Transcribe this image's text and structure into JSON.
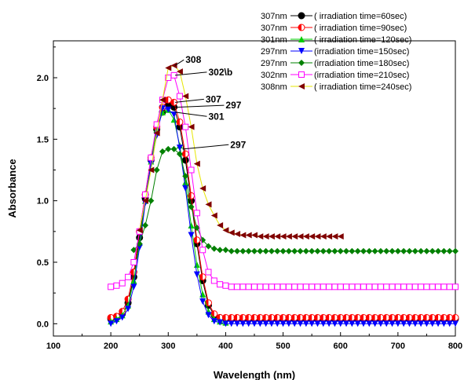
{
  "chart_data": {
    "type": "line",
    "xlabel": "Wavelength (nm)",
    "ylabel": "Absorbance",
    "xlim": [
      100,
      800
    ],
    "ylim": [
      -0.1,
      2.3
    ],
    "x_ticks": [
      100,
      200,
      300,
      400,
      500,
      600,
      700,
      800
    ],
    "x_tick_labels": [
      "100",
      "200",
      "300",
      "400",
      "500",
      "600",
      "700",
      "800"
    ],
    "y_ticks": [
      0.0,
      0.5,
      1.0,
      1.5,
      2.0
    ],
    "y_tick_labels": [
      "0.0",
      "0.5",
      "1.0",
      "1.5",
      "2.0"
    ],
    "legend_position": "top-right",
    "series": [
      {
        "name": "307nm—●—( irradiation time=60sec)",
        "color": "#000000",
        "marker": "circle",
        "x": [
          200,
          210,
          220,
          230,
          240,
          250,
          260,
          270,
          280,
          290,
          300,
          310,
          320,
          330,
          340,
          350,
          360,
          370,
          380,
          390,
          400,
          410,
          420,
          430,
          440,
          450,
          460,
          470,
          480,
          490,
          500,
          510,
          520,
          530,
          540,
          550,
          560,
          570,
          580,
          590,
          600,
          610,
          620,
          630,
          640,
          650,
          660,
          670,
          680,
          690,
          700,
          710,
          720,
          730,
          740,
          750,
          760,
          770,
          780,
          790,
          800
        ],
        "values": [
          0.04,
          0.05,
          0.08,
          0.17,
          0.38,
          0.7,
          1.02,
          1.33,
          1.58,
          1.72,
          1.78,
          1.76,
          1.6,
          1.33,
          1.0,
          0.65,
          0.35,
          0.15,
          0.07,
          0.05,
          0.04,
          0.04,
          0.04,
          0.04,
          0.04,
          0.04,
          0.04,
          0.04,
          0.04,
          0.04,
          0.04,
          0.04,
          0.04,
          0.04,
          0.04,
          0.04,
          0.04,
          0.04,
          0.04,
          0.04,
          0.04,
          0.04,
          0.04,
          0.04,
          0.04,
          0.04,
          0.04,
          0.04,
          0.04,
          0.04,
          0.04,
          0.04,
          0.04,
          0.04,
          0.04,
          0.04,
          0.04,
          0.04,
          0.04,
          0.04,
          0.04
        ]
      },
      {
        "name": "307nm—◐—( irradiation time=90sec)",
        "color": "#ff0000",
        "marker": "half-circle",
        "x": [
          200,
          210,
          220,
          230,
          240,
          250,
          260,
          270,
          280,
          290,
          300,
          310,
          320,
          330,
          340,
          350,
          360,
          370,
          380,
          390,
          400,
          410,
          420,
          430,
          440,
          450,
          460,
          470,
          480,
          490,
          500,
          510,
          520,
          530,
          540,
          550,
          560,
          570,
          580,
          590,
          600,
          610,
          620,
          630,
          640,
          650,
          660,
          670,
          680,
          690,
          700,
          710,
          720,
          730,
          740,
          750,
          760,
          770,
          780,
          790,
          800
        ],
        "values": [
          0.05,
          0.06,
          0.1,
          0.2,
          0.42,
          0.75,
          1.05,
          1.35,
          1.6,
          1.76,
          1.82,
          1.8,
          1.64,
          1.38,
          1.04,
          0.68,
          0.38,
          0.17,
          0.08,
          0.05,
          0.05,
          0.05,
          0.05,
          0.05,
          0.05,
          0.05,
          0.05,
          0.05,
          0.05,
          0.05,
          0.05,
          0.05,
          0.05,
          0.05,
          0.05,
          0.05,
          0.05,
          0.05,
          0.05,
          0.05,
          0.05,
          0.05,
          0.05,
          0.05,
          0.05,
          0.05,
          0.05,
          0.05,
          0.05,
          0.05,
          0.05,
          0.05,
          0.05,
          0.05,
          0.05,
          0.05,
          0.05,
          0.05,
          0.05,
          0.05,
          0.05
        ]
      },
      {
        "name": "301nm—▲—( irradiation time=120sec)",
        "color": "#00cc00",
        "marker": "triangle-up",
        "x": [
          200,
          210,
          220,
          230,
          240,
          250,
          260,
          270,
          280,
          290,
          300,
          310,
          320,
          330,
          340,
          350,
          360,
          370,
          380,
          390,
          400
        ],
        "values": [
          0.02,
          0.04,
          0.07,
          0.15,
          0.35,
          0.66,
          1.0,
          1.32,
          1.58,
          1.72,
          1.74,
          1.66,
          1.45,
          1.15,
          0.8,
          0.48,
          0.24,
          0.1,
          0.04,
          0.02,
          0.01
        ]
      },
      {
        "name": "297nm—▼—(irradiation time=150sec)",
        "color": "#0000ff",
        "marker": "triangle-down",
        "x": [
          200,
          210,
          220,
          230,
          240,
          250,
          260,
          270,
          280,
          290,
          300,
          310,
          320,
          330,
          340,
          350,
          360,
          370,
          380,
          390,
          400,
          410,
          420,
          430,
          440,
          450,
          460,
          470,
          480,
          490,
          500,
          510,
          520,
          530,
          540,
          550,
          560,
          570,
          580,
          590,
          600,
          610,
          620,
          630,
          640,
          650,
          660,
          670,
          680,
          690,
          700,
          710,
          720,
          730,
          740,
          750,
          760,
          770,
          780,
          790,
          800
        ],
        "values": [
          0.0,
          0.02,
          0.05,
          0.12,
          0.3,
          0.62,
          0.98,
          1.3,
          1.53,
          1.75,
          1.74,
          1.7,
          1.43,
          1.1,
          0.72,
          0.4,
          0.18,
          0.07,
          0.02,
          0.01,
          0.0,
          0.0,
          0.0,
          0.0,
          0.0,
          0.0,
          0.0,
          0.0,
          0.0,
          0.0,
          0.0,
          0.0,
          0.0,
          0.0,
          0.0,
          0.0,
          0.0,
          0.0,
          0.0,
          0.0,
          0.0,
          0.0,
          0.0,
          0.0,
          0.0,
          0.0,
          0.0,
          0.0,
          0.0,
          0.0,
          0.0,
          0.0,
          0.0,
          0.0,
          0.0,
          0.0,
          0.0,
          0.0,
          0.0,
          0.0,
          0.0
        ]
      },
      {
        "name": "297nm—◆—(irradiation time=180sec)",
        "color": "#008000",
        "marker": "diamond",
        "x": [
          240,
          250,
          260,
          270,
          280,
          290,
          300,
          310,
          320,
          330,
          340,
          350,
          360,
          370,
          380,
          390,
          400,
          410,
          420,
          430,
          440,
          450,
          460,
          470,
          480,
          490,
          500,
          510,
          520,
          530,
          540,
          550,
          560,
          570,
          580,
          590,
          600,
          610,
          620,
          630,
          640,
          650,
          660,
          670,
          680,
          690,
          700,
          710,
          720,
          730,
          740,
          750,
          760,
          770,
          780,
          790,
          800
        ],
        "values": [
          0.6,
          0.65,
          0.8,
          1.0,
          1.25,
          1.4,
          1.42,
          1.42,
          1.38,
          1.2,
          0.95,
          0.78,
          0.68,
          0.63,
          0.61,
          0.6,
          0.6,
          0.59,
          0.59,
          0.59,
          0.59,
          0.59,
          0.59,
          0.59,
          0.59,
          0.59,
          0.59,
          0.59,
          0.59,
          0.59,
          0.59,
          0.59,
          0.59,
          0.59,
          0.59,
          0.59,
          0.59,
          0.59,
          0.59,
          0.59,
          0.59,
          0.59,
          0.59,
          0.59,
          0.59,
          0.59,
          0.59,
          0.59,
          0.59,
          0.59,
          0.59,
          0.59,
          0.59,
          0.59,
          0.59,
          0.59,
          0.59
        ]
      },
      {
        "name": "302nm—□—(irradiation time=210sec)",
        "color": "#ff00ff",
        "marker": "square-open",
        "x": [
          200,
          210,
          220,
          230,
          240,
          250,
          260,
          270,
          280,
          290,
          300,
          310,
          320,
          330,
          340,
          350,
          360,
          370,
          380,
          390,
          400,
          410,
          420,
          430,
          440,
          450,
          460,
          470,
          480,
          490,
          500,
          510,
          520,
          530,
          540,
          550,
          560,
          570,
          580,
          590,
          600,
          610,
          620,
          630,
          640,
          650,
          660,
          670,
          680,
          690,
          700,
          710,
          720,
          730,
          740,
          750,
          760,
          770,
          780,
          790,
          800
        ],
        "values": [
          0.3,
          0.31,
          0.33,
          0.38,
          0.5,
          0.75,
          1.05,
          1.35,
          1.62,
          1.82,
          2.0,
          2.02,
          1.85,
          1.6,
          1.25,
          0.9,
          0.6,
          0.42,
          0.35,
          0.32,
          0.31,
          0.3,
          0.3,
          0.3,
          0.3,
          0.3,
          0.3,
          0.3,
          0.3,
          0.3,
          0.3,
          0.3,
          0.3,
          0.3,
          0.3,
          0.3,
          0.3,
          0.3,
          0.3,
          0.3,
          0.3,
          0.3,
          0.3,
          0.3,
          0.3,
          0.3,
          0.3,
          0.3,
          0.3,
          0.3,
          0.3,
          0.3,
          0.3,
          0.3,
          0.3,
          0.3,
          0.3,
          0.3,
          0.3,
          0.3,
          0.3
        ]
      },
      {
        "name": "308nm—◀—( irradiation time=240sec)",
        "color": "#800000",
        "line_color": "#e6e600",
        "marker": "triangle-left",
        "x": [
          250,
          260,
          270,
          280,
          290,
          300,
          310,
          320,
          330,
          340,
          350,
          360,
          370,
          380,
          390,
          400,
          410,
          420,
          430,
          440,
          450,
          460,
          470,
          480,
          490,
          500,
          510,
          520,
          530,
          540,
          550,
          560,
          570,
          580,
          590,
          600
        ],
        "values": [
          0.76,
          1.0,
          1.25,
          1.55,
          1.82,
          2.08,
          2.1,
          2.05,
          1.85,
          1.6,
          1.3,
          1.1,
          0.97,
          0.88,
          0.8,
          0.76,
          0.74,
          0.73,
          0.72,
          0.72,
          0.72,
          0.71,
          0.71,
          0.71,
          0.71,
          0.71,
          0.71,
          0.71,
          0.71,
          0.71,
          0.71,
          0.71,
          0.71,
          0.71,
          0.71,
          0.71
        ]
      }
    ],
    "annotations": [
      {
        "text": "308",
        "x": 330,
        "y": 2.12,
        "arrow_to_x": 312,
        "arrow_to_y": 2.1
      },
      {
        "text": "302\\b",
        "x": 370,
        "y": 2.02,
        "arrow_to_x": 312,
        "arrow_to_y": 2.02
      },
      {
        "text": "307",
        "x": 365,
        "y": 1.8,
        "arrow_to_x": 312,
        "arrow_to_y": 1.8
      },
      {
        "text": "297",
        "x": 400,
        "y": 1.75,
        "arrow_to_x": 312,
        "arrow_to_y": 1.76
      },
      {
        "text": "301",
        "x": 370,
        "y": 1.66,
        "arrow_to_x": 312,
        "arrow_to_y": 1.72
      },
      {
        "text": "297",
        "x": 408,
        "y": 1.43,
        "arrow_to_x": 325,
        "arrow_to_y": 1.42
      }
    ]
  }
}
